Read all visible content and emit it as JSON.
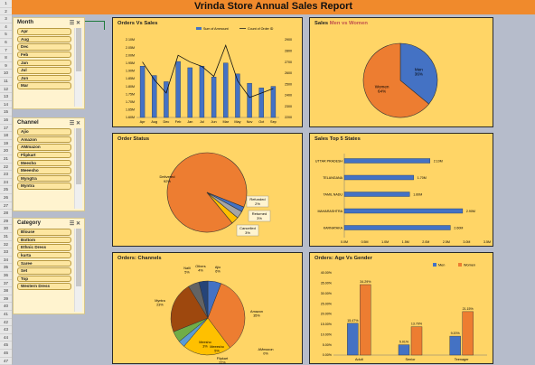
{
  "title": "Vrinda Store Annual Sales Report",
  "row_numbers": [
    "1",
    "2",
    "3",
    "4",
    "5",
    "6",
    "7",
    "8",
    "9",
    "10",
    "11",
    "12",
    "13",
    "14",
    "15",
    "16",
    "17",
    "18",
    "19",
    "20",
    "21",
    "22",
    "23",
    "24",
    "25",
    "26",
    "27",
    "28",
    "29",
    "30",
    "31",
    "32",
    "33",
    "34",
    "35",
    "36",
    "37",
    "38",
    "39",
    "40",
    "41",
    "42",
    "43",
    "44",
    "45",
    "46",
    "47"
  ],
  "slicers": {
    "month": {
      "label": "Month",
      "items": [
        "Apr",
        "Aug",
        "Dec",
        "Feb",
        "Jan",
        "Jul",
        "Jun",
        "Mar"
      ]
    },
    "channel": {
      "label": "Channel",
      "items": [
        "Ajio",
        "Amazon",
        "AMmazon",
        "Flipkart",
        "Meesho",
        "Meeesho",
        "Myngtra",
        "Myntra"
      ]
    },
    "category": {
      "label": "Category",
      "items": [
        "Blouse",
        "Bottom",
        "Ethnic Dress",
        "kurta",
        "Saree",
        "Set",
        "Top",
        "Western Dress"
      ]
    }
  },
  "colors": {
    "orange": "#ed7d31",
    "blue": "#4472c4",
    "panel": "#ffd566",
    "title_bar": "#f08a2c",
    "gray": "#a5a5a5",
    "gold": "#ffc000",
    "light_blue": "#5b9bd5",
    "dark_red": "#9e480e",
    "dark_gray": "#636363"
  },
  "charts": {
    "orders_vs_sales": {
      "title": "Orders Vs Sales",
      "legend": [
        "Sum of Ammount",
        "Count of Order ID"
      ],
      "left_ticks": [
        "2.10M",
        "2.05M",
        "2.00M",
        "1.95M",
        "1.90M",
        "1.85M",
        "1.80M",
        "1.75M",
        "1.70M",
        "1.65M",
        "1.60M"
      ],
      "right_ticks": [
        "2900",
        "2800",
        "2700",
        "2600",
        "2500",
        "2400",
        "2300",
        "2200"
      ]
    },
    "sales_men_women": {
      "title_prefix": "Sales ",
      "title_highlight": "Men vs Women"
    },
    "order_status": {
      "title": "Order Status"
    },
    "top_states": {
      "title": "Sales Top 5 States",
      "ticks": [
        "0.0M",
        "0.5M",
        "1.0M",
        "1.5M",
        "2.0M",
        "2.5M",
        "3.0M",
        "3.5M"
      ]
    },
    "channels": {
      "title": "Orders: Channels"
    },
    "age_gender": {
      "title": "Orders: Age Vs Gender",
      "legend": [
        "Men",
        "Women"
      ],
      "ticks": [
        "40.00%",
        "35.00%",
        "30.00%",
        "25.00%",
        "20.00%",
        "15.00%",
        "10.00%",
        "5.00%",
        "0.00%"
      ]
    }
  },
  "chart_data": [
    {
      "type": "bar",
      "title": "Orders Vs Sales",
      "categories": [
        "Apr",
        "Aug",
        "Dec",
        "Feb",
        "Jan",
        "Jul",
        "Jun",
        "Mar",
        "May",
        "Nov",
        "Oct",
        "Sep"
      ],
      "series": [
        {
          "name": "Sum of Ammount",
          "type": "bar",
          "axis": "left",
          "values": [
            1.93,
            1.87,
            1.83,
            1.96,
            1.92,
            1.93,
            1.86,
            1.95,
            1.88,
            1.82,
            1.79,
            1.8
          ]
        },
        {
          "name": "Count of Order ID",
          "type": "line",
          "axis": "right",
          "values": [
            2700,
            2540,
            2420,
            2760,
            2700,
            2660,
            2570,
            2850,
            2530,
            2380,
            2420,
            2460
          ]
        }
      ],
      "ylim_left": [
        1.6,
        2.1
      ],
      "ylim_right": [
        2200,
        2900
      ]
    },
    {
      "type": "pie",
      "title_prefix": "Sales ",
      "title_highlight": "Men vs Women",
      "labels": [
        "Men",
        "Women"
      ],
      "values": [
        36,
        64
      ],
      "display": [
        "36%",
        "64%"
      ]
    },
    {
      "type": "pie",
      "title": "Order Status",
      "labels": [
        "Delivered",
        "Refunded",
        "Returned",
        "Cancelled"
      ],
      "values": [
        92,
        2,
        3,
        3
      ],
      "display": [
        "92%",
        "2%",
        "3%",
        "3%"
      ]
    },
    {
      "type": "bar",
      "orientation": "horizontal",
      "title": "Sales Top 5 States",
      "categories": [
        "UTTAR PRADESH",
        "TELANGANA",
        "TAMIL NADU",
        "MAHARASHTRA",
        "KARNATAKA"
      ],
      "values": [
        2.1,
        1.7,
        1.6,
        2.9,
        2.6
      ],
      "display": [
        "2.10M",
        "1.70M",
        "1.60M",
        "2.90M",
        "2.60M"
      ],
      "xlim": [
        0,
        3.5
      ]
    },
    {
      "type": "pie",
      "title": "Orders: Channels",
      "labels": [
        "Ajio",
        "Amazon",
        "AMmazon",
        "Flipkart",
        "Meesho",
        "Meeesho",
        "Myntra",
        "Nalli",
        "Others"
      ],
      "values": [
        6,
        35,
        0,
        22,
        3,
        5,
        23,
        5,
        4
      ],
      "display": [
        "6%",
        "35%",
        "0%",
        "22%",
        "3%",
        "5%",
        "23%",
        "5%",
        "4%"
      ]
    },
    {
      "type": "bar",
      "title": "Orders: Age Vs Gender",
      "categories": [
        "Adult",
        "Senior",
        "Teenager"
      ],
      "series": [
        {
          "name": "Men",
          "values": [
            15.47,
            5.01,
            9.2
          ],
          "display": [
            "15.47%",
            "5.01%",
            "9.20%"
          ]
        },
        {
          "name": "Women",
          "values": [
            34.29,
            13.79,
            21.15
          ],
          "display": [
            "34.29%",
            "13.79%",
            "21.15%"
          ]
        }
      ],
      "ylim": [
        0,
        40
      ]
    }
  ]
}
